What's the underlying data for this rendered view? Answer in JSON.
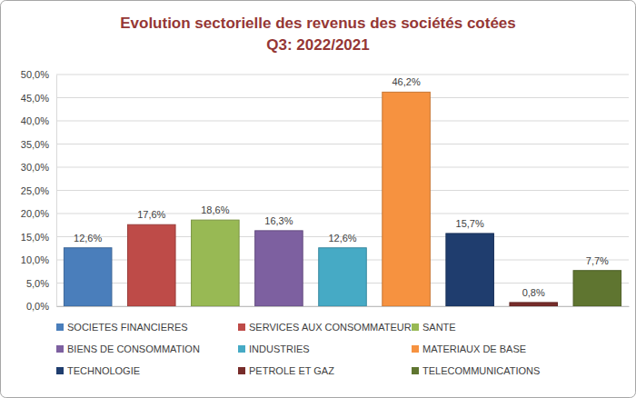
{
  "chart_data": {
    "type": "bar",
    "title": "Evolution sectorielle des revenus des sociétés cotées",
    "subtitle": "Q3: 2022/2021",
    "categories": [
      "SOCIETES FINANCIERES",
      "SERVICES AUX CONSOMMATEURS",
      "SANTE",
      "BIENS DE CONSOMMATION",
      "INDUSTRIES",
      "MATERIAUX DE BASE",
      "TECHNOLOGIE",
      "PETROLE ET GAZ",
      "TELECOMMUNICATIONS"
    ],
    "values": [
      12.6,
      17.6,
      18.6,
      16.3,
      12.6,
      46.2,
      15.7,
      0.8,
      7.7
    ],
    "value_labels": [
      "12,6%",
      "17,6%",
      "18,6%",
      "16,3%",
      "12,6%",
      "46,2%",
      "15,7%",
      "0,8%",
      "7,7%"
    ],
    "colors": [
      "#4a7ebb",
      "#be4b48",
      "#98b954",
      "#7d60a0",
      "#46aac5",
      "#f69240",
      "#1f3d6e",
      "#772c2a",
      "#5f7530"
    ],
    "ylim": [
      0,
      50
    ],
    "yticks": [
      {
        "value": 0,
        "label": "0,0%"
      },
      {
        "value": 5,
        "label": "5,0%"
      },
      {
        "value": 10,
        "label": "10,0%"
      },
      {
        "value": 15,
        "label": "15,0%"
      },
      {
        "value": 20,
        "label": "20,0%"
      },
      {
        "value": 25,
        "label": "25,0%"
      },
      {
        "value": 30,
        "label": "30,0%"
      },
      {
        "value": 35,
        "label": "35,0%"
      },
      {
        "value": 40,
        "label": "40,0%"
      },
      {
        "value": 45,
        "label": "45,0%"
      },
      {
        "value": 50,
        "label": "50,0%"
      }
    ],
    "grid": true,
    "legend": "bottom",
    "data_labels": true,
    "tick_labels": "y"
  }
}
